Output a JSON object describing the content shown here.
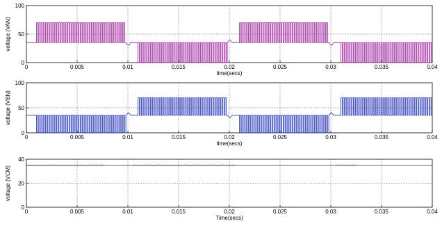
{
  "chart_data": [
    {
      "type": "line",
      "title": "",
      "xlabel": "time(secs)",
      "ylabel": "voltage (VAN)",
      "xlim": [
        0,
        0.04
      ],
      "ylim": [
        0,
        100
      ],
      "grid": true,
      "xticks": [
        "0",
        "0.005",
        "0.01",
        "0.015",
        "0.02",
        "0.025",
        "0.03",
        "0.035",
        "0.04"
      ],
      "yticks": [
        "0",
        "50",
        "100"
      ],
      "series": [
        {
          "color": "#a020a0",
          "segments": [
            {
              "x": [
                0.0,
                0.001
              ],
              "pattern": "flat",
              "level": 35
            },
            {
              "x": [
                0.001,
                0.0098
              ],
              "pattern": "pwm",
              "low": 35,
              "high": 70
            },
            {
              "x": [
                0.0098,
                0.0103
              ],
              "pattern": "transient_down",
              "from": 35,
              "to": 30
            },
            {
              "x": [
                0.0103,
                0.011
              ],
              "pattern": "flat",
              "level": 35
            },
            {
              "x": [
                0.011,
                0.0198
              ],
              "pattern": "pwm",
              "low": 0,
              "high": 35
            },
            {
              "x": [
                0.0198,
                0.0203
              ],
              "pattern": "transient_up",
              "from": 35,
              "to": 40
            },
            {
              "x": [
                0.0203,
                0.021
              ],
              "pattern": "flat",
              "level": 35
            },
            {
              "x": [
                0.021,
                0.0298
              ],
              "pattern": "pwm",
              "low": 35,
              "high": 70
            },
            {
              "x": [
                0.0298,
                0.0303
              ],
              "pattern": "transient_down",
              "from": 35,
              "to": 30
            },
            {
              "x": [
                0.0303,
                0.031
              ],
              "pattern": "flat",
              "level": 35
            },
            {
              "x": [
                0.031,
                0.04
              ],
              "pattern": "pwm",
              "low": 0,
              "high": 35
            }
          ]
        }
      ]
    },
    {
      "type": "line",
      "title": "",
      "xlabel": "time(secs)",
      "ylabel": "voltage (VBN)",
      "xlim": [
        0,
        0.04
      ],
      "ylim": [
        0,
        100
      ],
      "grid": true,
      "xticks": [
        "0",
        "0.005",
        "0.01",
        "0.015",
        "0.02",
        "0.025",
        "0.03",
        "0.035",
        "0.04"
      ],
      "yticks": [
        "0",
        "50",
        "100"
      ],
      "series": [
        {
          "color": "#2030c0",
          "segments": [
            {
              "x": [
                0.0,
                0.001
              ],
              "pattern": "flat",
              "level": 35
            },
            {
              "x": [
                0.001,
                0.0098
              ],
              "pattern": "pwm",
              "low": 0,
              "high": 35
            },
            {
              "x": [
                0.0098,
                0.0103
              ],
              "pattern": "transient_up",
              "from": 35,
              "to": 40
            },
            {
              "x": [
                0.0103,
                0.011
              ],
              "pattern": "flat",
              "level": 35
            },
            {
              "x": [
                0.011,
                0.0198
              ],
              "pattern": "pwm",
              "low": 35,
              "high": 70
            },
            {
              "x": [
                0.0198,
                0.0203
              ],
              "pattern": "transient_down",
              "from": 35,
              "to": 30
            },
            {
              "x": [
                0.0203,
                0.021
              ],
              "pattern": "flat",
              "level": 35
            },
            {
              "x": [
                0.021,
                0.0298
              ],
              "pattern": "pwm",
              "low": 0,
              "high": 35
            },
            {
              "x": [
                0.0298,
                0.0303
              ],
              "pattern": "transient_up",
              "from": 35,
              "to": 40
            },
            {
              "x": [
                0.0303,
                0.031
              ],
              "pattern": "flat",
              "level": 35
            },
            {
              "x": [
                0.031,
                0.04
              ],
              "pattern": "pwm",
              "low": 35,
              "high": 70
            }
          ]
        }
      ]
    },
    {
      "type": "line",
      "title": "",
      "xlabel": "Time(secs)",
      "ylabel": "voltage (VCM)",
      "xlim": [
        0,
        0.04
      ],
      "ylim": [
        0,
        40
      ],
      "grid": true,
      "xticks": [
        "0",
        "0.005",
        "0.01",
        "0.015",
        "0.02",
        "0.025",
        "0.03",
        "0.035",
        "0.04"
      ],
      "yticks": [
        "0",
        "20",
        "40"
      ],
      "series": [
        {
          "color": "#303030",
          "segments": [
            {
              "x": [
                0.0,
                0.0075
              ],
              "pattern": "ripple",
              "level": 35,
              "amp": 0.3
            },
            {
              "x": [
                0.0075,
                0.0105
              ],
              "pattern": "flat",
              "level": 35
            },
            {
              "x": [
                0.0105,
                0.0205
              ],
              "pattern": "ripple",
              "level": 35,
              "amp": 0.3
            },
            {
              "x": [
                0.0205,
                0.0305
              ],
              "pattern": "flat",
              "level": 35
            },
            {
              "x": [
                0.0305,
                0.0325
              ],
              "pattern": "ripple",
              "level": 35,
              "amp": 0.3
            },
            {
              "x": [
                0.0325,
                0.04
              ],
              "pattern": "flat",
              "level": 35
            }
          ]
        }
      ]
    }
  ]
}
